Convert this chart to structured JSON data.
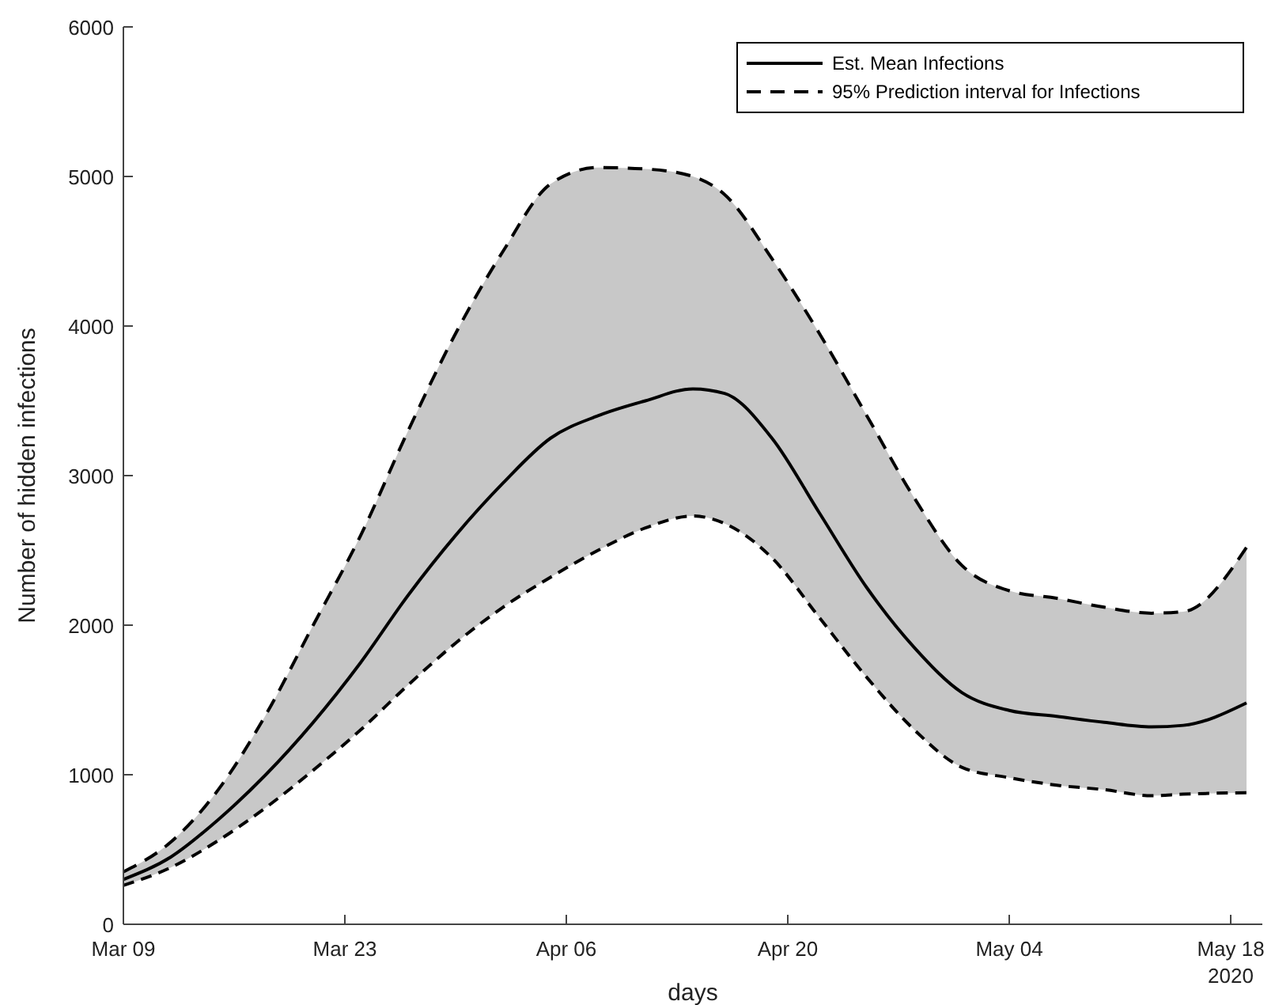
{
  "chart_data": {
    "type": "line",
    "xlabel": "days",
    "ylabel": "Number of hidden infections",
    "x": [
      "2020-03-09",
      "2020-03-12",
      "2020-03-15",
      "2020-03-18",
      "2020-03-21",
      "2020-03-24",
      "2020-03-27",
      "2020-03-30",
      "2020-04-02",
      "2020-04-05",
      "2020-04-08",
      "2020-04-11",
      "2020-04-14",
      "2020-04-16",
      "2020-04-19",
      "2020-04-22",
      "2020-04-25",
      "2020-04-28",
      "2020-05-01",
      "2020-05-04",
      "2020-05-07",
      "2020-05-10",
      "2020-05-13",
      "2020-05-15",
      "2020-05-19"
    ],
    "series": [
      {
        "name": "Est. Mean Infections",
        "type": "line",
        "color": "#000000",
        "line_style": "solid",
        "values": [
          300,
          450,
          700,
          1000,
          1350,
          1750,
          2200,
          2600,
          2950,
          3250,
          3400,
          3500,
          3580,
          3550,
          3250,
          2750,
          2250,
          1850,
          1550,
          1430,
          1390,
          1350,
          1320,
          1330,
          1480
        ],
        "upper": [
          350,
          550,
          900,
          1400,
          2000,
          2600,
          3300,
          3950,
          4500,
          4950,
          5060,
          5050,
          5000,
          4880,
          4450,
          3950,
          3400,
          2850,
          2400,
          2230,
          2180,
          2120,
          2080,
          2090,
          2520
        ],
        "lower": [
          260,
          380,
          560,
          780,
          1030,
          1300,
          1600,
          1880,
          2120,
          2320,
          2500,
          2650,
          2730,
          2680,
          2450,
          2050,
          1650,
          1300,
          1050,
          980,
          930,
          900,
          860,
          870,
          880
        ]
      },
      {
        "name": "95% Prediction interval for Infections",
        "color": "#000000",
        "line_style": "dashed",
        "values": [
          350,
          550,
          900,
          1400,
          2000,
          2600,
          3300,
          3950,
          4500,
          4950,
          5060,
          5050,
          5000,
          4880,
          4450,
          3950,
          3400,
          2850,
          2400,
          2230,
          2180,
          2120,
          2080,
          2090,
          2520
        ]
      },
      {
        "color": "#000000",
        "line_style": "dashed",
        "values": [
          260,
          380,
          560,
          780,
          1030,
          1300,
          1600,
          1880,
          2120,
          2320,
          2500,
          2650,
          2730,
          2680,
          2450,
          2050,
          1650,
          1300,
          1050,
          980,
          930,
          900,
          860,
          870,
          880
        ]
      }
    ],
    "xlim": [
      "2020-03-09",
      "2020-05-20"
    ],
    "xticks": [
      {
        "value": "2020-03-09",
        "label": "Mar 09"
      },
      {
        "value": "2020-03-23",
        "label": "Mar 23"
      },
      {
        "value": "2020-04-06",
        "label": "Apr 06"
      },
      {
        "value": "2020-04-20",
        "label": "Apr 20"
      },
      {
        "value": "2020-05-04",
        "label": "May 04"
      },
      {
        "value": "2020-05-18",
        "label": "May 18"
      }
    ],
    "annotations": [
      "2020"
    ],
    "ylim": [
      0,
      6000
    ],
    "yticks": [
      0,
      1000,
      2000,
      3000,
      4000,
      5000,
      6000
    ],
    "grid": false,
    "legend": "top right"
  }
}
